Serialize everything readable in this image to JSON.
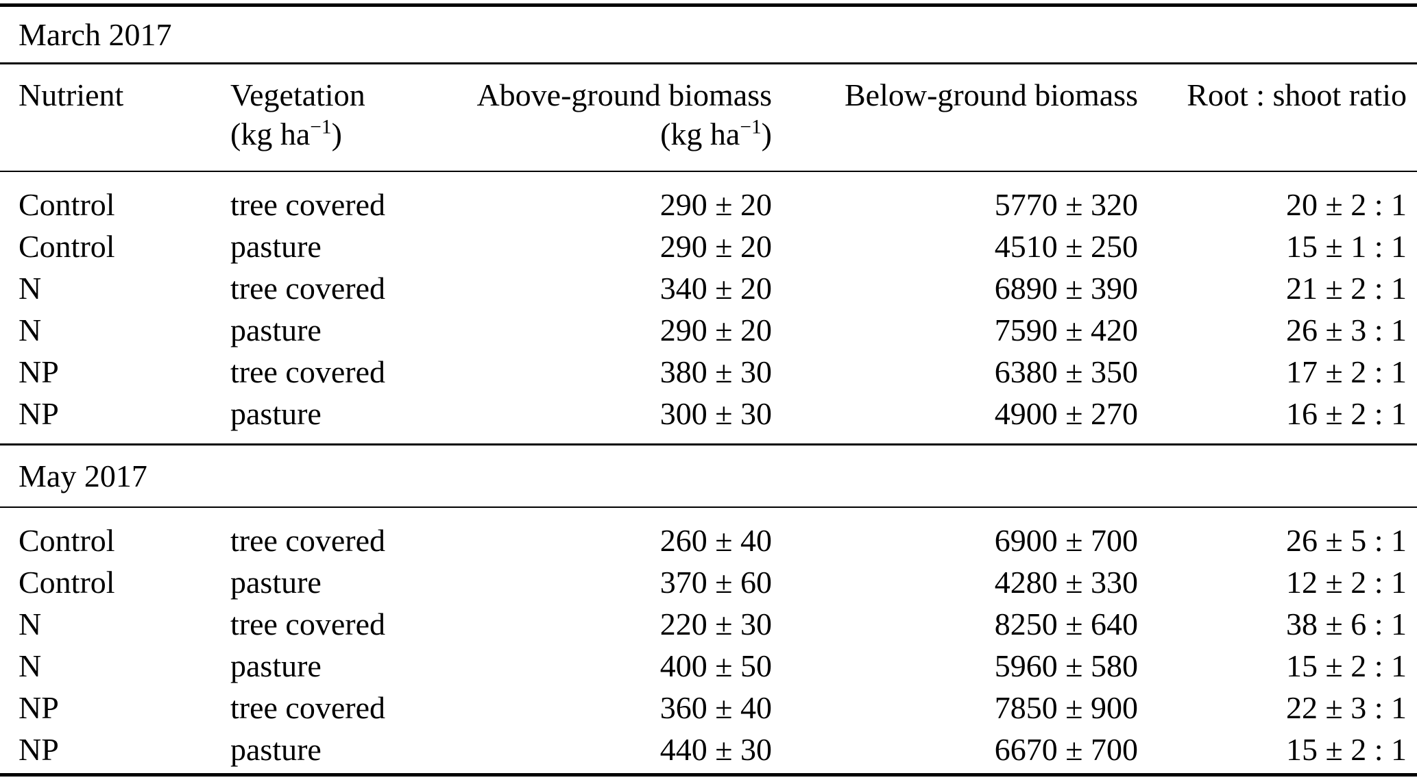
{
  "table": {
    "headers": {
      "nutrient": "Nutrient",
      "vegetation": "Vegetation",
      "vegetation_unit_prefix": "(kg ha",
      "vegetation_unit_sup": "−1",
      "vegetation_unit_suffix": ")",
      "above": "Above-ground biomass",
      "above_unit_prefix": "(kg ha",
      "above_unit_sup": "−1",
      "above_unit_suffix": ")",
      "below": "Below-ground biomass",
      "ratio": "Root : shoot ratio"
    },
    "sections": [
      {
        "title": "March 2017",
        "rows": [
          {
            "nutrient": "Control",
            "vegetation": "tree covered",
            "above": "290 ± 20",
            "below": "5770 ± 320",
            "ratio": "20 ± 2 : 1"
          },
          {
            "nutrient": "Control",
            "vegetation": "pasture",
            "above": "290 ± 20",
            "below": "4510 ± 250",
            "ratio": "15 ± 1 : 1"
          },
          {
            "nutrient": "N",
            "vegetation": "tree covered",
            "above": "340 ± 20",
            "below": "6890 ± 390",
            "ratio": "21 ± 2 : 1"
          },
          {
            "nutrient": "N",
            "vegetation": "pasture",
            "above": "290 ± 20",
            "below": "7590 ± 420",
            "ratio": "26 ± 3 : 1"
          },
          {
            "nutrient": "NP",
            "vegetation": "tree covered",
            "above": "380 ± 30",
            "below": "6380 ± 350",
            "ratio": "17 ± 2 : 1"
          },
          {
            "nutrient": "NP",
            "vegetation": "pasture",
            "above": "300 ± 30",
            "below": "4900 ± 270",
            "ratio": "16 ± 2 : 1"
          }
        ]
      },
      {
        "title": "May 2017",
        "rows": [
          {
            "nutrient": "Control",
            "vegetation": "tree covered",
            "above": "260 ± 40",
            "below": "6900 ± 700",
            "ratio": "26 ± 5 : 1"
          },
          {
            "nutrient": "Control",
            "vegetation": "pasture",
            "above": "370 ± 60",
            "below": "4280 ± 330",
            "ratio": "12 ± 2 : 1"
          },
          {
            "nutrient": "N",
            "vegetation": "tree covered",
            "above": "220 ± 30",
            "below": "8250 ± 640",
            "ratio": "38 ± 6 : 1"
          },
          {
            "nutrient": "N",
            "vegetation": "pasture",
            "above": "400 ± 50",
            "below": "5960 ± 580",
            "ratio": "15 ± 2 : 1"
          },
          {
            "nutrient": "NP",
            "vegetation": "tree covered",
            "above": "360 ± 40",
            "below": "7850 ± 900",
            "ratio": "22 ± 3 : 1"
          },
          {
            "nutrient": "NP",
            "vegetation": "pasture",
            "above": "440 ± 30",
            "below": "6670 ± 700",
            "ratio": "15 ± 2 : 1"
          }
        ]
      }
    ]
  }
}
